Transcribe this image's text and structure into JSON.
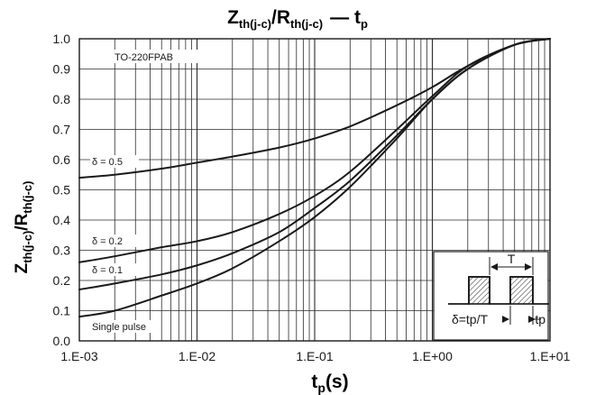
{
  "chart_data": {
    "type": "line",
    "title": {
      "prefix": "Z",
      "prefix_sub": "th(j-c)",
      "slash": "/R",
      "slash_sub": "th(j-c)",
      "dash": "— t",
      "dash_sub": "p"
    },
    "xlabel": {
      "main": "t",
      "sub": "p",
      "unit": "(s)"
    },
    "ylabel": {
      "main": "Z",
      "sub1": "th(j-c)",
      "mid": "/R",
      "sub2": "th(j-c)"
    },
    "x_scale": "log",
    "xlim": [
      0.001,
      10
    ],
    "ylim": [
      0,
      1.0
    ],
    "grid": true,
    "x_tick_labels": [
      "1.E-03",
      "1.E-02",
      "1.E-01",
      "1.E+00",
      "1.E+01"
    ],
    "x_tick_values": [
      0.001,
      0.01,
      0.1,
      1,
      10
    ],
    "y_ticks": [
      0.0,
      0.1,
      0.2,
      0.3,
      0.4,
      0.5,
      0.6,
      0.7,
      0.8,
      0.9,
      1.0
    ],
    "y_tick_labels": [
      "0.0",
      "0.1",
      "0.2",
      "0.3",
      "0.4",
      "0.5",
      "0.6",
      "0.7",
      "0.8",
      "0.9",
      "1.0"
    ],
    "package_label": "TO-220FPAB",
    "series": [
      {
        "name": "δ = 0.5",
        "x": [
          0.001,
          0.002,
          0.005,
          0.01,
          0.02,
          0.05,
          0.1,
          0.2,
          0.5,
          1,
          2,
          5,
          10
        ],
        "y": [
          0.54,
          0.55,
          0.57,
          0.59,
          0.61,
          0.64,
          0.67,
          0.71,
          0.78,
          0.84,
          0.91,
          0.98,
          1.0
        ]
      },
      {
        "name": "δ = 0.2",
        "x": [
          0.001,
          0.002,
          0.005,
          0.01,
          0.02,
          0.05,
          0.1,
          0.2,
          0.5,
          1,
          2,
          5,
          10
        ],
        "y": [
          0.26,
          0.28,
          0.31,
          0.33,
          0.36,
          0.42,
          0.48,
          0.56,
          0.7,
          0.81,
          0.91,
          0.98,
          1.0
        ]
      },
      {
        "name": "δ = 0.1",
        "x": [
          0.001,
          0.002,
          0.005,
          0.01,
          0.02,
          0.05,
          0.1,
          0.2,
          0.5,
          1,
          2,
          5,
          10
        ],
        "y": [
          0.17,
          0.19,
          0.22,
          0.25,
          0.29,
          0.36,
          0.44,
          0.53,
          0.68,
          0.8,
          0.9,
          0.98,
          1.0
        ]
      },
      {
        "name": "Single pulse",
        "x": [
          0.001,
          0.002,
          0.005,
          0.01,
          0.02,
          0.05,
          0.1,
          0.2,
          0.5,
          1,
          2,
          5,
          10
        ],
        "y": [
          0.08,
          0.1,
          0.15,
          0.19,
          0.24,
          0.33,
          0.41,
          0.51,
          0.67,
          0.8,
          0.9,
          0.98,
          1.0
        ]
      }
    ],
    "inset": {
      "period_label": "T",
      "duty_label": "δ=tp/T",
      "pulse_label": "tp"
    },
    "colors": {
      "line": "#1a1a1a",
      "grid": "#2b2b2b",
      "hatch": "#444444"
    }
  }
}
